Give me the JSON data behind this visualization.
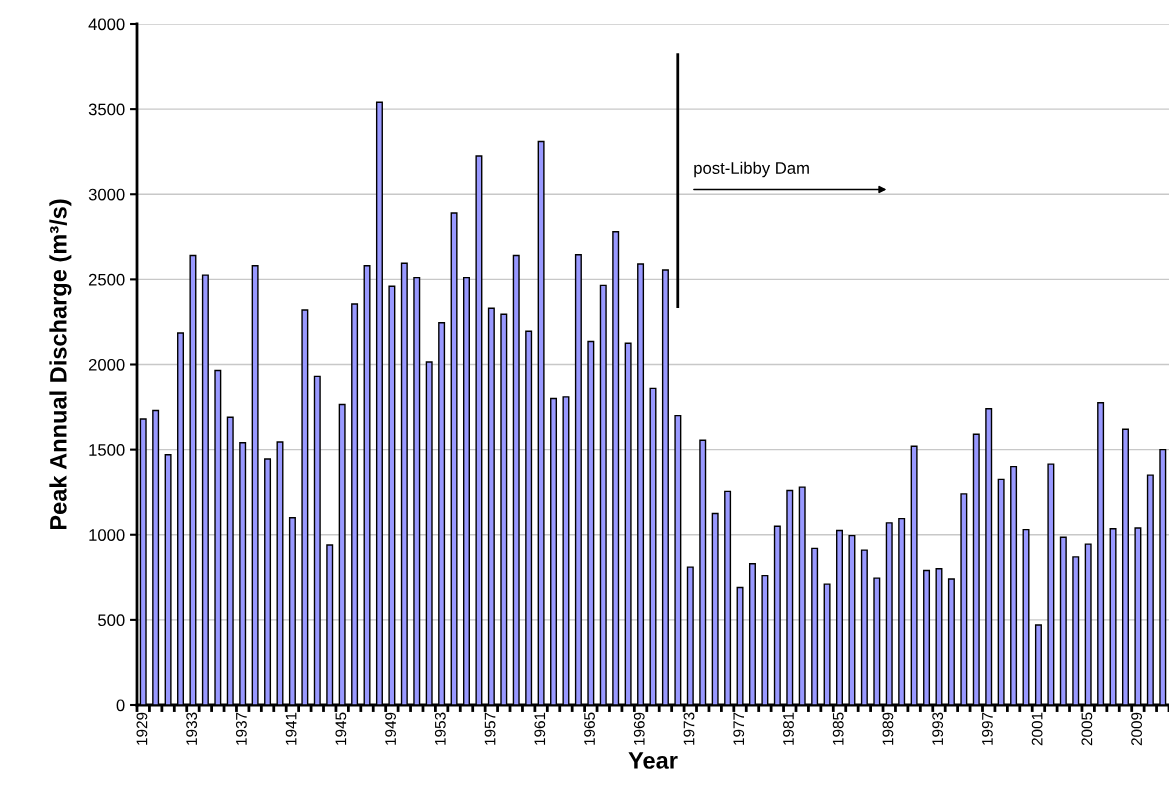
{
  "chart_data": {
    "type": "bar",
    "xlabel": "Year",
    "ylabel": "Peak Annual Discharge (m³/s)",
    "categories": [
      "1929",
      null,
      null,
      null,
      "1933",
      null,
      null,
      null,
      "1937",
      null,
      null,
      null,
      "1941",
      null,
      null,
      null,
      "1945",
      null,
      null,
      null,
      "1949",
      null,
      null,
      null,
      "1953",
      null,
      null,
      null,
      "1957",
      null,
      null,
      null,
      "1961",
      null,
      null,
      null,
      "1965",
      null,
      null,
      null,
      "1969",
      null,
      null,
      null,
      "1973",
      null,
      null,
      null,
      "1977",
      null,
      null,
      null,
      "1981",
      null,
      null,
      null,
      "1985",
      null,
      null,
      null,
      "1989",
      null,
      null,
      null,
      "1993",
      null,
      null,
      null,
      "1997",
      null,
      null,
      null,
      "2001",
      null,
      null,
      null,
      "2005",
      null,
      null,
      null,
      "2009",
      null,
      null
    ],
    "values": [
      1680,
      1730,
      1470,
      2185,
      2640,
      2525,
      1965,
      1690,
      1540,
      2580,
      1445,
      1545,
      1100,
      2320,
      1930,
      940,
      1765,
      2355,
      2580,
      3540,
      2460,
      2595,
      2510,
      2015,
      2245,
      2890,
      2510,
      3225,
      2330,
      2295,
      2640,
      2195,
      3310,
      1800,
      1810,
      2645,
      2135,
      2465,
      2780,
      2125,
      2590,
      1860,
      2555,
      1700,
      810,
      1555,
      1125,
      1255,
      690,
      830,
      760,
      1050,
      1260,
      1280,
      920,
      710,
      1025,
      995,
      910,
      745,
      1070,
      1095,
      1520,
      790,
      800,
      740,
      1240,
      1590,
      1740,
      1325,
      1400,
      1030,
      470,
      1415,
      985,
      870,
      945,
      1775,
      1035,
      1620,
      1040,
      1350,
      1500
    ],
    "color": "#9999ff",
    "ylim": [
      0,
      4000
    ],
    "yticks": [
      0,
      500,
      1000,
      1500,
      2000,
      2500,
      3000,
      3500,
      4000
    ],
    "grid": "y",
    "annotations": [
      "post-Libby Dam"
    ]
  }
}
